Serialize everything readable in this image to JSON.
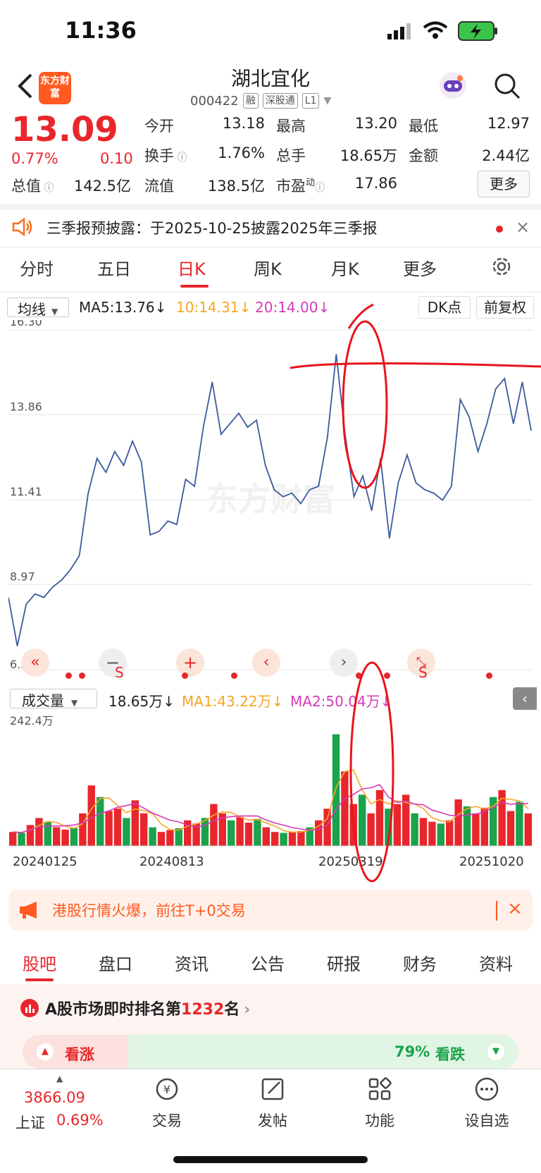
{
  "status": {
    "time": "11:36"
  },
  "header": {
    "back": "back",
    "logo_text": "东方财富",
    "title": "湖北宜化",
    "code": "000422",
    "tags": [
      "融",
      "深股通",
      "L1"
    ]
  },
  "quote": {
    "price": "13.09",
    "change_pct": "0.77%",
    "change": "0.10",
    "open_label": "今开",
    "open": "13.18",
    "high_label": "最高",
    "high": "13.20",
    "low_label": "最低",
    "low": "12.97",
    "turnover_label": "换手",
    "turnover": "1.76%",
    "volume_label": "总手",
    "volume": "18.65万",
    "amount_label": "金额",
    "amount": "2.44亿",
    "mktcap_label": "总值",
    "mktcap": "142.5亿",
    "float_label": "流值",
    "float": "138.5亿",
    "pe_label": "市盈",
    "pe_sup": "动",
    "pe": "17.86",
    "more_btn": "更多"
  },
  "notice": {
    "text": "三季报预披露：于2025-10-25披露2025年三季报"
  },
  "period_tabs": [
    "分时",
    "五日",
    "日K",
    "周K",
    "月K",
    "更多"
  ],
  "ma_bar": {
    "select": "均线",
    "ma5": "MA5:13.76↓",
    "ma10": "10:14.31↓",
    "ma20": "20:14.00↓",
    "dk": "DK点",
    "adjust": "前复权",
    "colors": {
      "ma5": "#222222",
      "ma10": "#f5a623",
      "ma20": "#d63ab8"
    }
  },
  "chart_data": {
    "type": "line",
    "title": "",
    "y_ticks": [
      "16.30",
      "13.86",
      "11.41",
      "8.97",
      "6.52"
    ],
    "ylim": [
      6.52,
      16.3
    ],
    "x_labels": [
      "20240125",
      "20240813",
      "20250319",
      "20251020"
    ],
    "watermark": "东方财富",
    "series": [
      {
        "values": [
          8.6,
          7.2,
          8.4,
          8.7,
          8.6,
          8.9,
          9.1,
          9.4,
          9.8,
          11.6,
          12.6,
          12.2,
          12.8,
          12.4,
          13.1,
          12.5,
          10.4,
          10.5,
          10.8,
          10.7,
          12.0,
          11.8,
          13.5,
          14.8,
          13.3,
          13.6,
          13.9,
          13.5,
          13.7,
          12.4,
          11.7,
          11.5,
          11.6,
          11.3,
          11.7,
          11.8,
          13.2,
          15.6,
          13.3,
          11.5,
          12.1,
          11.1,
          12.6,
          10.3,
          11.9,
          12.7,
          11.9,
          11.7,
          11.6,
          11.4,
          11.8,
          14.3,
          13.8,
          12.8,
          13.6,
          14.6,
          14.9,
          13.6,
          14.8,
          13.4
        ]
      }
    ]
  },
  "controls": {
    "icons": [
      "rewind-icon",
      "minus-icon",
      "plus-icon",
      "prev-icon",
      "next-icon",
      "collapse-icon"
    ],
    "s_marks": [
      "S",
      "S"
    ]
  },
  "vol_bar": {
    "select": "成交量",
    "vol": "18.65万↓",
    "ma1": "MA1:43.22万↓",
    "ma2": "MA2:50.04万↓",
    "max_label": "242.4万"
  },
  "volume_data": [
    30,
    28,
    45,
    60,
    52,
    40,
    35,
    38,
    70,
    130,
    105,
    75,
    80,
    60,
    98,
    70,
    40,
    30,
    34,
    38,
    55,
    48,
    60,
    90,
    70,
    55,
    62,
    50,
    58,
    40,
    30,
    28,
    30,
    32,
    40,
    55,
    80,
    240,
    160,
    90,
    110,
    70,
    120,
    80,
    90,
    110,
    70,
    60,
    52,
    48,
    55,
    100,
    85,
    70,
    82,
    105,
    120,
    75,
    95,
    70
  ],
  "promo": {
    "text": "港股行情火爆，前往T+0交易"
  },
  "content_tabs": [
    "股吧",
    "盘口",
    "资讯",
    "公告",
    "研报",
    "财务",
    "资料"
  ],
  "rank": {
    "prefix": "A股市场即时排名第",
    "num": "1232",
    "suffix": "名",
    "bull": "看涨",
    "bear_pct": "79%",
    "bear": "看跌"
  },
  "bottom": {
    "index_value": "3866.09",
    "index_name": "上证",
    "index_change": "0.69%",
    "items": [
      "交易",
      "发帖",
      "功能",
      "设自选"
    ]
  }
}
